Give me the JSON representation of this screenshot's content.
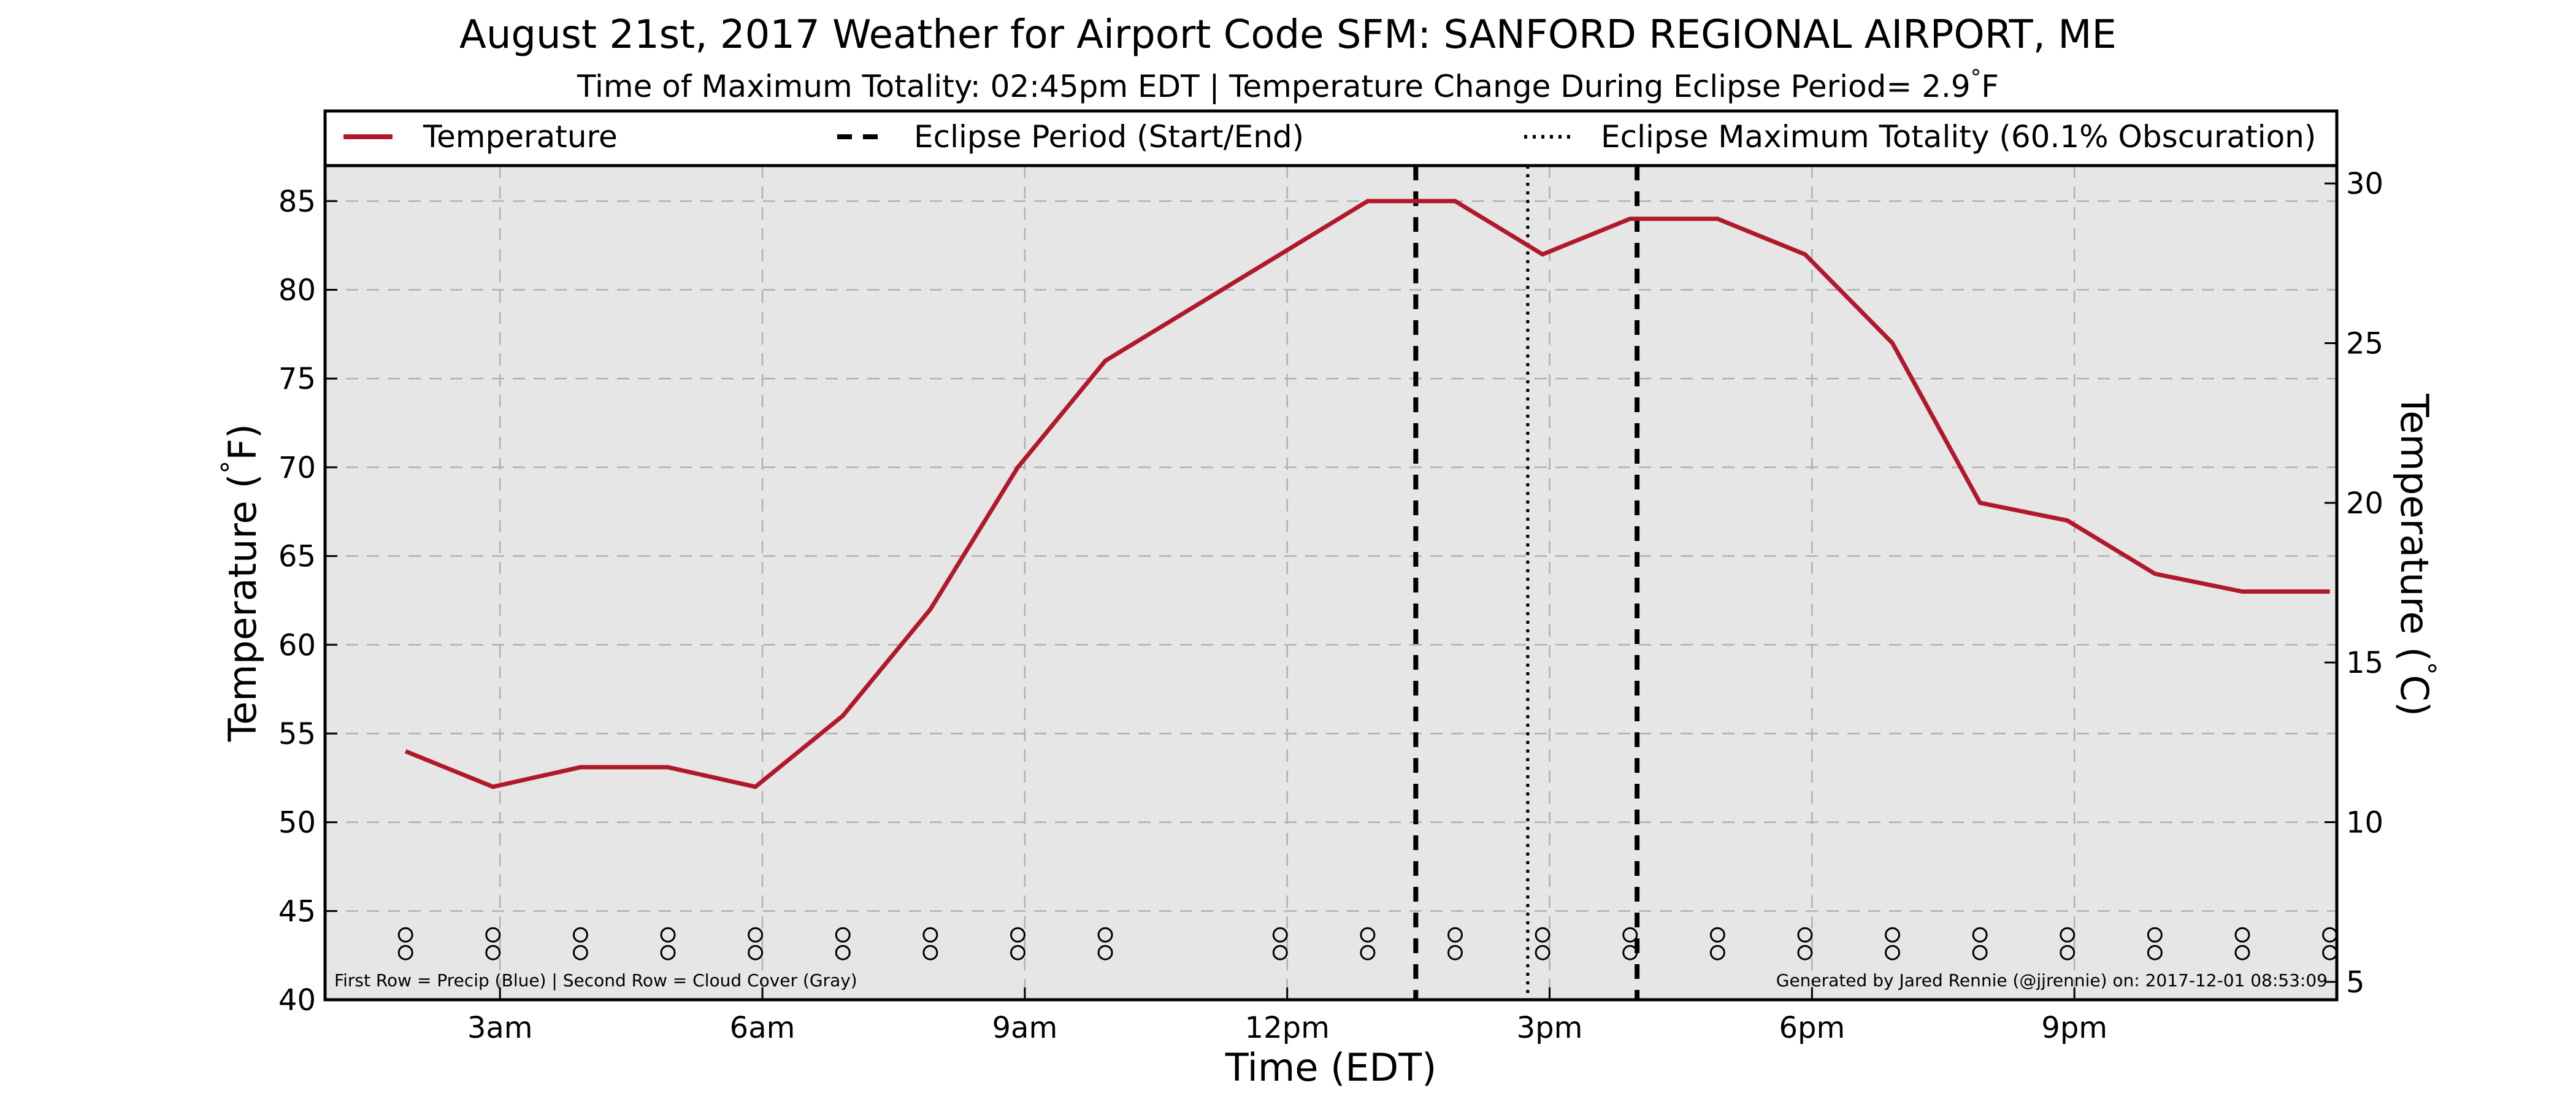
{
  "chart_data": {
    "type": "line",
    "title": "August 21st, 2017 Weather for Airport Code SFM: SANFORD REGIONAL AIRPORT, ME",
    "subtitle": "Time of Maximum Totality: 02:45pm EDT | Temperature Change During Eclipse Period= 2.9$^\\circ$F",
    "xlabel": "Time (EDT)",
    "ylabel": "Temperature ($^\\circ$F)",
    "ylabel_right": "Temperature ($^\\circ$C)",
    "xlim": [
      1.0,
      24.0
    ],
    "ylim": [
      40,
      87
    ],
    "ylim_right_celsius": [
      4.44,
      30.56
    ],
    "x_ticks": [
      {
        "x": 3,
        "label": "3am"
      },
      {
        "x": 6,
        "label": "6am"
      },
      {
        "x": 9,
        "label": "9am"
      },
      {
        "x": 12,
        "label": "12pm"
      },
      {
        "x": 15,
        "label": "3pm"
      },
      {
        "x": 18,
        "label": "6pm"
      },
      {
        "x": 21,
        "label": "9pm"
      }
    ],
    "y_ticks": [
      40,
      45,
      50,
      55,
      60,
      65,
      70,
      75,
      80,
      85
    ],
    "y_ticks_right": [
      5,
      10,
      15,
      20,
      25,
      30
    ],
    "grid": true,
    "legend_position": "top",
    "series": [
      {
        "name": "Temperature",
        "color": "#b2182b",
        "style": "solid",
        "x": [
          1.92,
          2.92,
          3.92,
          4.92,
          5.92,
          6.92,
          7.92,
          8.92,
          9.92,
          11.92,
          12.92,
          13.92,
          14.92,
          15.92,
          16.92,
          17.92,
          18.92,
          19.92,
          20.92,
          21.92,
          22.92,
          23.92
        ],
        "y": [
          54,
          52,
          53.1,
          53.1,
          52,
          56,
          62,
          70,
          76,
          82,
          85,
          85,
          82,
          84,
          84,
          82,
          77,
          68,
          67,
          64,
          63,
          63
        ]
      }
    ],
    "vertical_lines": [
      {
        "name": "Eclipse Period (Start/End)",
        "style": "dashed",
        "color": "#000000",
        "x": [
          13.47,
          16.0
        ]
      },
      {
        "name": "Eclipse Maximum Totality (60.1% Obscuration)",
        "style": "dotted",
        "color": "#000000",
        "x": [
          14.75
        ]
      }
    ],
    "marker_rows": {
      "row1_y": 44,
      "row2_y": 43,
      "x": [
        1.92,
        2.92,
        3.92,
        4.92,
        5.92,
        6.92,
        7.92,
        8.92,
        9.92,
        11.92,
        12.92,
        13.92,
        14.92,
        15.92,
        16.92,
        17.92,
        18.92,
        19.92,
        20.92,
        21.92,
        22.92,
        23.92
      ]
    },
    "colors": {
      "plot_background": "#e6e6e6",
      "grid": "#b0b0b0",
      "temperature_line": "#b2182b"
    },
    "annotations": {
      "bottom_left": "First Row = Precip (Blue) | Second Row = Cloud Cover (Gray)",
      "bottom_right": "Generated by Jared Rennie (@jjrennie) on: 2017-12-01 08:53:09"
    }
  }
}
